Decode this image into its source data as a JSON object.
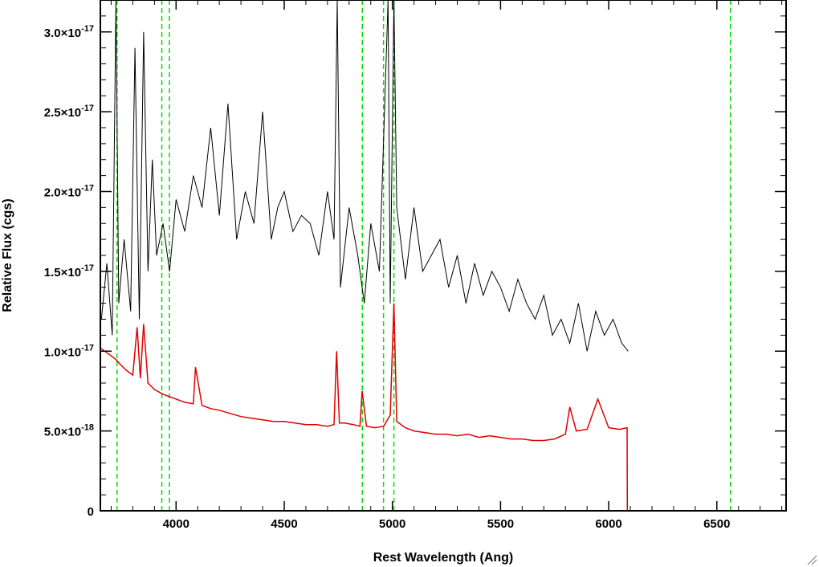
{
  "chart_data": {
    "type": "line",
    "title": "",
    "xlabel": "Rest Wavelength (Ang)",
    "ylabel": "Relative Flux (cgs)",
    "xlim": [
      3650,
      6820
    ],
    "ylim": [
      0,
      3.2e-17
    ],
    "x_ticks": [
      {
        "value": 4000,
        "label": "4000"
      },
      {
        "value": 4500,
        "label": "4500"
      },
      {
        "value": 5000,
        "label": "5000"
      },
      {
        "value": 5500,
        "label": "5500"
      },
      {
        "value": 6000,
        "label": "6000"
      },
      {
        "value": 6500,
        "label": "6500"
      }
    ],
    "y_ticks": [
      {
        "value": 0,
        "label": "0",
        "exp": ""
      },
      {
        "value": 5e-18,
        "label": "5.0×10",
        "exp": "-18"
      },
      {
        "value": 1e-17,
        "label": "1.0×10",
        "exp": "-17"
      },
      {
        "value": 1.5e-17,
        "label": "1.5×10",
        "exp": "-17"
      },
      {
        "value": 2e-17,
        "label": "2.0×10",
        "exp": "-17"
      },
      {
        "value": 2.5e-17,
        "label": "2.5×10",
        "exp": "-17"
      },
      {
        "value": 3e-17,
        "label": "3.0×10",
        "exp": "-17"
      }
    ],
    "grid": false,
    "legend": "none",
    "series": [
      {
        "color": "#000000",
        "style": "solid",
        "x": [
          3655,
          3680,
          3705,
          3722,
          3735,
          3760,
          3790,
          3810,
          3830,
          3850,
          3870,
          3890,
          3910,
          3940,
          3970,
          4000,
          4040,
          4080,
          4120,
          4160,
          4200,
          4240,
          4280,
          4320,
          4360,
          4400,
          4440,
          4470,
          4500,
          4540,
          4580,
          4620,
          4660,
          4700,
          4730,
          4745,
          4760,
          4800,
          4840,
          4870,
          4900,
          4940,
          4980,
          4990,
          5007,
          5020,
          5060,
          5100,
          5140,
          5180,
          5220,
          5260,
          5300,
          5340,
          5380,
          5420,
          5460,
          5500,
          5540,
          5580,
          5620,
          5660,
          5700,
          5740,
          5780,
          5820,
          5860,
          5900,
          5940,
          5980,
          6020,
          6060,
          6090
        ],
        "y": [
          1.2e-17,
          1.55e-17,
          1.1e-17,
          3.2e-17,
          1.3e-17,
          1.7e-17,
          1.25e-17,
          2.9e-17,
          1.2e-17,
          3e-17,
          1.5e-17,
          2.2e-17,
          1.6e-17,
          1.8e-17,
          1.5e-17,
          1.95e-17,
          1.75e-17,
          2.1e-17,
          1.9e-17,
          2.4e-17,
          1.85e-17,
          2.55e-17,
          1.7e-17,
          2e-17,
          1.8e-17,
          2.5e-17,
          1.7e-17,
          1.9e-17,
          2e-17,
          1.75e-17,
          1.85e-17,
          1.8e-17,
          1.6e-17,
          2e-17,
          1.7e-17,
          3.2e-17,
          1.4e-17,
          1.9e-17,
          1.6e-17,
          1.3e-17,
          1.8e-17,
          1.5e-17,
          3.2e-17,
          1.3e-17,
          3.2e-17,
          1.9e-17,
          1.45e-17,
          1.9e-17,
          1.5e-17,
          1.6e-17,
          1.7e-17,
          1.4e-17,
          1.6e-17,
          1.3e-17,
          1.55e-17,
          1.35e-17,
          1.5e-17,
          1.4e-17,
          1.25e-17,
          1.45e-17,
          1.3e-17,
          1.2e-17,
          1.35e-17,
          1.1e-17,
          1.2e-17,
          1.05e-17,
          1.3e-17,
          1e-17,
          1.25e-17,
          1.1e-17,
          1.2e-17,
          1.05e-17,
          1e-17
        ]
      },
      {
        "color": "#e00000",
        "style": "solid",
        "x": [
          3650,
          3690,
          3720,
          3740,
          3770,
          3800,
          3820,
          3835,
          3850,
          3870,
          3900,
          3940,
          3980,
          4000,
          4040,
          4080,
          4090,
          4120,
          4160,
          4200,
          4250,
          4300,
          4350,
          4400,
          4450,
          4500,
          4550,
          4600,
          4650,
          4700,
          4730,
          4742,
          4755,
          4780,
          4820,
          4850,
          4860,
          4880,
          4920,
          4960,
          4990,
          5007,
          5020,
          5060,
          5100,
          5150,
          5200,
          5250,
          5300,
          5350,
          5400,
          5450,
          5500,
          5550,
          5600,
          5650,
          5700,
          5750,
          5800,
          5820,
          5850,
          5900,
          5950,
          6000,
          6050,
          6085,
          6086,
          6300,
          6820
        ],
        "y": [
          1.02e-17,
          9.8e-18,
          9.5e-18,
          9.2e-18,
          8.8e-18,
          8.5e-18,
          1.15e-17,
          8.3e-18,
          1.17e-17,
          8e-18,
          7.6e-18,
          7.3e-18,
          7.1e-18,
          7e-18,
          6.8e-18,
          6.7e-18,
          9e-18,
          6.6e-18,
          6.4e-18,
          6.3e-18,
          6.1e-18,
          5.9e-18,
          5.8e-18,
          5.7e-18,
          5.6e-18,
          5.6e-18,
          5.5e-18,
          5.4e-18,
          5.4e-18,
          5.3e-18,
          5.4e-18,
          1e-17,
          5.5e-18,
          5.5e-18,
          5.4e-18,
          5.3e-18,
          7.5e-18,
          5.3e-18,
          5.2e-18,
          5.3e-18,
          6e-18,
          1.3e-17,
          5.6e-18,
          5.2e-18,
          5e-18,
          4.9e-18,
          4.8e-18,
          4.8e-18,
          4.7e-18,
          4.8e-18,
          4.6e-18,
          4.7e-18,
          4.6e-18,
          4.5e-18,
          4.5e-18,
          4.4e-18,
          4.4e-18,
          4.5e-18,
          4.8e-18,
          6.5e-18,
          5e-18,
          5.1e-18,
          7e-18,
          5.2e-18,
          5.1e-18,
          5.2e-18,
          0,
          0,
          0
        ]
      }
    ],
    "vlines": {
      "color": "#00dd00",
      "style": "dashed",
      "x": [
        3727,
        3934,
        3969,
        4861,
        4959,
        5007,
        6563
      ]
    }
  }
}
